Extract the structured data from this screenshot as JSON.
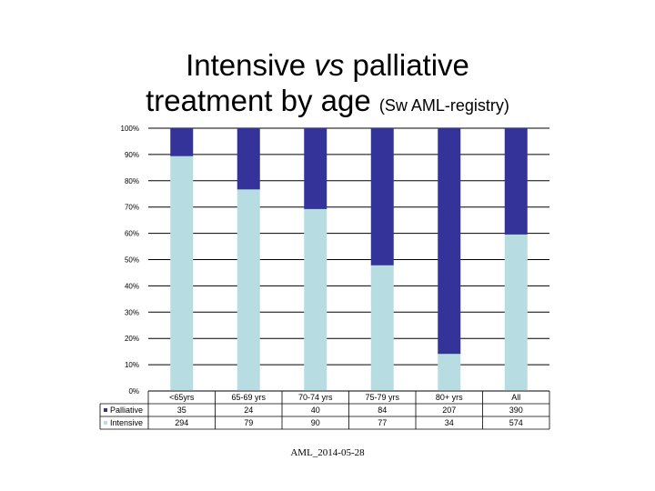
{
  "title": {
    "line1_pre": "Intensive ",
    "line1_em": "vs",
    "line1_post": " palliative",
    "line2": "treatment by age ",
    "note": "(Sw AML-registry)"
  },
  "footer": "AML_2014-05-28",
  "chart_data": {
    "type": "bar",
    "stacked": true,
    "normalized": true,
    "categories": [
      "<65yrs",
      "65-69 yrs",
      "70-74 yrs",
      "75-79 yrs",
      "80+ yrs",
      "All"
    ],
    "series": [
      {
        "name": "Palliative",
        "color": "#333399",
        "values": [
          35,
          24,
          40,
          84,
          207,
          390
        ]
      },
      {
        "name": "Intensive",
        "color": "#b7dde3",
        "values": [
          294,
          79,
          90,
          77,
          34,
          574
        ]
      }
    ],
    "yticks": [
      "0%",
      "10%",
      "20%",
      "30%",
      "40%",
      "50%",
      "60%",
      "70%",
      "80%",
      "90%",
      "100%"
    ],
    "ylim": [
      0,
      100
    ],
    "grid": true,
    "legend": "data-table"
  }
}
